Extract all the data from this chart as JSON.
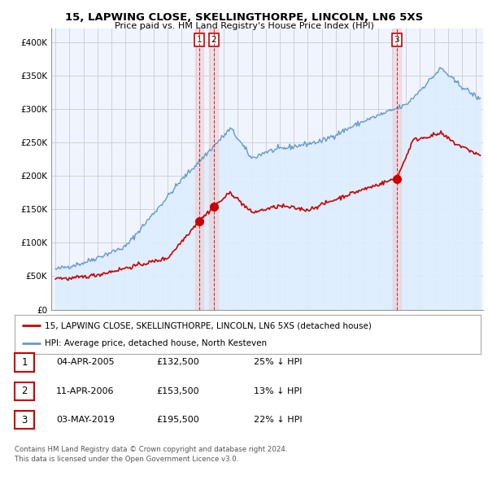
{
  "title": "15, LAPWING CLOSE, SKELLINGTHORPE, LINCOLN, LN6 5XS",
  "subtitle": "Price paid vs. HM Land Registry's House Price Index (HPI)",
  "ylim": [
    0,
    420000
  ],
  "yticks": [
    0,
    50000,
    100000,
    150000,
    200000,
    250000,
    300000,
    350000,
    400000
  ],
  "ytick_labels": [
    "£0",
    "£50K",
    "£100K",
    "£150K",
    "£200K",
    "£250K",
    "£300K",
    "£350K",
    "£400K"
  ],
  "xlim_start": 1994.7,
  "xlim_end": 2025.5,
  "transactions": [
    {
      "num": 1,
      "date": "04-APR-2005",
      "price": 132500,
      "pct": "25%",
      "year": 2005.26
    },
    {
      "num": 2,
      "date": "11-APR-2006",
      "price": 153500,
      "pct": "13%",
      "year": 2006.28
    },
    {
      "num": 3,
      "date": "03-MAY-2019",
      "price": 195500,
      "pct": "22%",
      "year": 2019.34
    }
  ],
  "red_line_color": "#cc0000",
  "blue_line_color": "#6699cc",
  "blue_fill_color": "#ddeeff",
  "vline_color": "#cc3333",
  "vline_fill_color": "#eecccc",
  "grid_color": "#cccccc",
  "legend_label_red": "15, LAPWING CLOSE, SKELLINGTHORPE, LINCOLN, LN6 5XS (detached house)",
  "legend_label_blue": "HPI: Average price, detached house, North Kesteven",
  "footnote1": "Contains HM Land Registry data © Crown copyright and database right 2024.",
  "footnote2": "This data is licensed under the Open Government Licence v3.0.",
  "background_color": "#ffffff"
}
